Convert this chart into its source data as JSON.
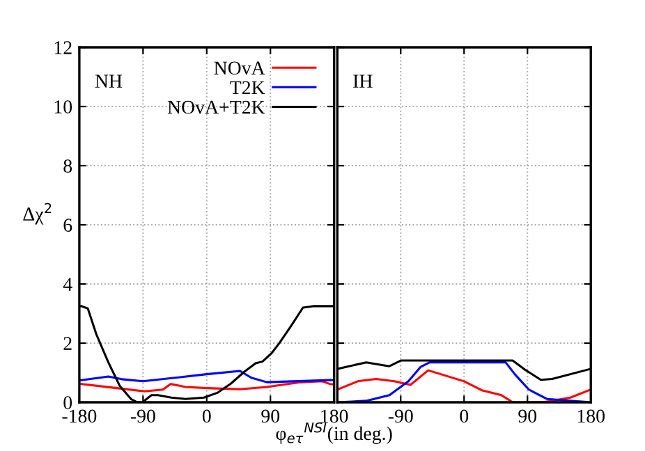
{
  "chart_data": [
    {
      "type": "line",
      "ylabel": "Δχ$^{2}$",
      "xlabel": "φ$_{eτ}$$^{NSI}$(in deg.)",
      "annotations": [
        "NH"
      ],
      "xlim": [
        -180,
        180
      ],
      "ylim": [
        0,
        12
      ],
      "xticks": [
        -180,
        -90,
        0,
        90,
        180
      ],
      "yticks": [
        0,
        2,
        4,
        6,
        8,
        10,
        12
      ],
      "grid": true,
      "legend": "top right",
      "series": [
        {
          "name": "NOvA",
          "color": "#ff0000",
          "x": [
            -180,
            -177,
            -127,
            -88,
            -62,
            -51,
            -30,
            0,
            47,
            85,
            130,
            163,
            174,
            180
          ],
          "values": [
            0.62,
            0.62,
            0.48,
            0.37,
            0.43,
            0.62,
            0.52,
            0.48,
            0.44,
            0.52,
            0.67,
            0.71,
            0.62,
            0.6
          ]
        },
        {
          "name": "T2K",
          "color": "#0000ff",
          "x": [
            -180,
            -177,
            -139,
            -120,
            -90,
            0,
            47,
            63,
            85,
            174,
            180
          ],
          "values": [
            0.75,
            0.75,
            0.87,
            0.78,
            0.71,
            0.95,
            1.06,
            0.83,
            0.68,
            0.75,
            0.75
          ]
        },
        {
          "name": "NOvA+T2K",
          "color": "#000000",
          "x": [
            -180,
            -177,
            -168,
            -156,
            -139,
            -123,
            -107,
            -98,
            -91,
            -78,
            -69,
            -50,
            -30,
            -4,
            15,
            34,
            53,
            69,
            79,
            92,
            102,
            118,
            136,
            150,
            174,
            180
          ],
          "values": [
            3.25,
            3.25,
            3.17,
            2.3,
            1.35,
            0.56,
            0.11,
            0,
            0,
            0.24,
            0.24,
            0.16,
            0.11,
            0.16,
            0.32,
            0.63,
            1.03,
            1.32,
            1.38,
            1.67,
            1.98,
            2.54,
            3.2,
            3.25,
            3.25,
            3.25
          ]
        }
      ]
    },
    {
      "type": "line",
      "annotations": [
        "IH"
      ],
      "xlim": [
        -180,
        180
      ],
      "ylim": [
        0,
        12
      ],
      "xticks": [
        {
          "value": -180,
          "label": null
        },
        -90,
        0,
        90,
        180
      ],
      "yticks": [
        0,
        2,
        4,
        6,
        8,
        10,
        12
      ],
      "grid": true,
      "tick_labels": "x",
      "series": [
        {
          "color": "#ff0000",
          "x": [
            -180,
            -151,
            -125,
            -99,
            -76,
            -51,
            -33,
            0,
            26,
            53,
            69,
            112,
            151,
            180
          ],
          "values": [
            0.43,
            0.71,
            0.79,
            0.71,
            0.59,
            1.08,
            0.95,
            0.71,
            0.4,
            0.24,
            0,
            0,
            0.16,
            0.43
          ]
        },
        {
          "color": "#0000ff",
          "x": [
            -180,
            -139,
            -106,
            -79,
            -62,
            -49,
            59,
            72,
            92,
            118,
            180
          ],
          "values": [
            0,
            0.05,
            0.24,
            0.71,
            1.19,
            1.35,
            1.35,
            0.95,
            0.43,
            0.11,
            0
          ]
        },
        {
          "color": "#000000",
          "x": [
            -180,
            -139,
            -106,
            -90,
            0,
            69,
            86,
            109,
            125,
            180
          ],
          "values": [
            1.13,
            1.35,
            1.22,
            1.41,
            1.41,
            1.41,
            1.11,
            0.76,
            0.79,
            1.13
          ]
        }
      ]
    }
  ]
}
